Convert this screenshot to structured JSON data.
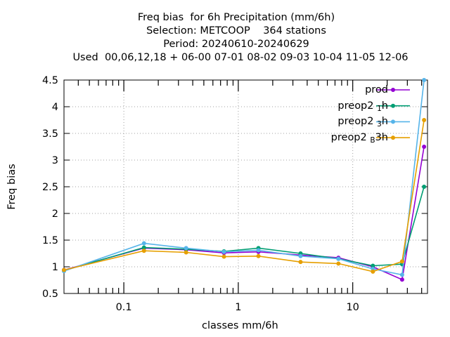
{
  "chart_data": {
    "type": "line",
    "title_lines": [
      "Freq bias  for 6h Precipitation (mm/6h)",
      "Selection: METCOOP    364 stations",
      "Period: 20240610-20240629",
      "Used  00,06,12,18 + 06-00 07-01 08-02 09-03 10-04 11-05 12-06"
    ],
    "xlabel": "classes mm/6h",
    "ylabel": "Freq bias",
    "xscale": "log",
    "xlim": [
      0.03,
      45
    ],
    "ylim": [
      0.5,
      4.5
    ],
    "xticks": [
      {
        "value": 0.1,
        "label": "0.1"
      },
      {
        "value": 1,
        "label": "1"
      },
      {
        "value": 10,
        "label": "10"
      }
    ],
    "yticks": [
      {
        "value": 0.5,
        "label": "0.5"
      },
      {
        "value": 1,
        "label": "1"
      },
      {
        "value": 1.5,
        "label": "1.5"
      },
      {
        "value": 2,
        "label": "2"
      },
      {
        "value": 2.5,
        "label": "2.5"
      },
      {
        "value": 3,
        "label": "3"
      },
      {
        "value": 3.5,
        "label": "3.5"
      },
      {
        "value": 4,
        "label": "4"
      },
      {
        "value": 4.5,
        "label": "4.5"
      }
    ],
    "grid": true,
    "legend_position": "top-right",
    "x": [
      0.03,
      0.15,
      0.35,
      0.75,
      1.5,
      3.5,
      7.5,
      15,
      27,
      42
    ],
    "series": [
      {
        "name": "prod",
        "color": "#9400d3",
        "values": [
          0.94,
          1.35,
          1.32,
          1.26,
          1.28,
          1.22,
          1.17,
          1.0,
          0.76,
          3.25
        ]
      },
      {
        "name": "preop2 1h",
        "name_main": "preop2 ",
        "name_sub": "1",
        "name_tail": "h",
        "color": "#009e73",
        "values": [
          0.93,
          1.36,
          1.33,
          1.29,
          1.35,
          1.25,
          1.15,
          1.02,
          1.05,
          2.5
        ]
      },
      {
        "name": "preop2 3h",
        "name_main": "preop2 ",
        "name_sub": "3",
        "name_tail": "h",
        "color": "#56b4e9",
        "values": [
          0.92,
          1.44,
          1.35,
          1.28,
          1.31,
          1.2,
          1.15,
          0.96,
          0.85,
          4.5
        ]
      },
      {
        "name": "preop2 B3h",
        "name_main": "preop2 ",
        "name_sub": "B",
        "name_tail": "3h",
        "color": "#e69f00",
        "values": [
          0.94,
          1.3,
          1.27,
          1.19,
          1.2,
          1.09,
          1.06,
          0.91,
          1.1,
          3.75
        ]
      }
    ]
  }
}
